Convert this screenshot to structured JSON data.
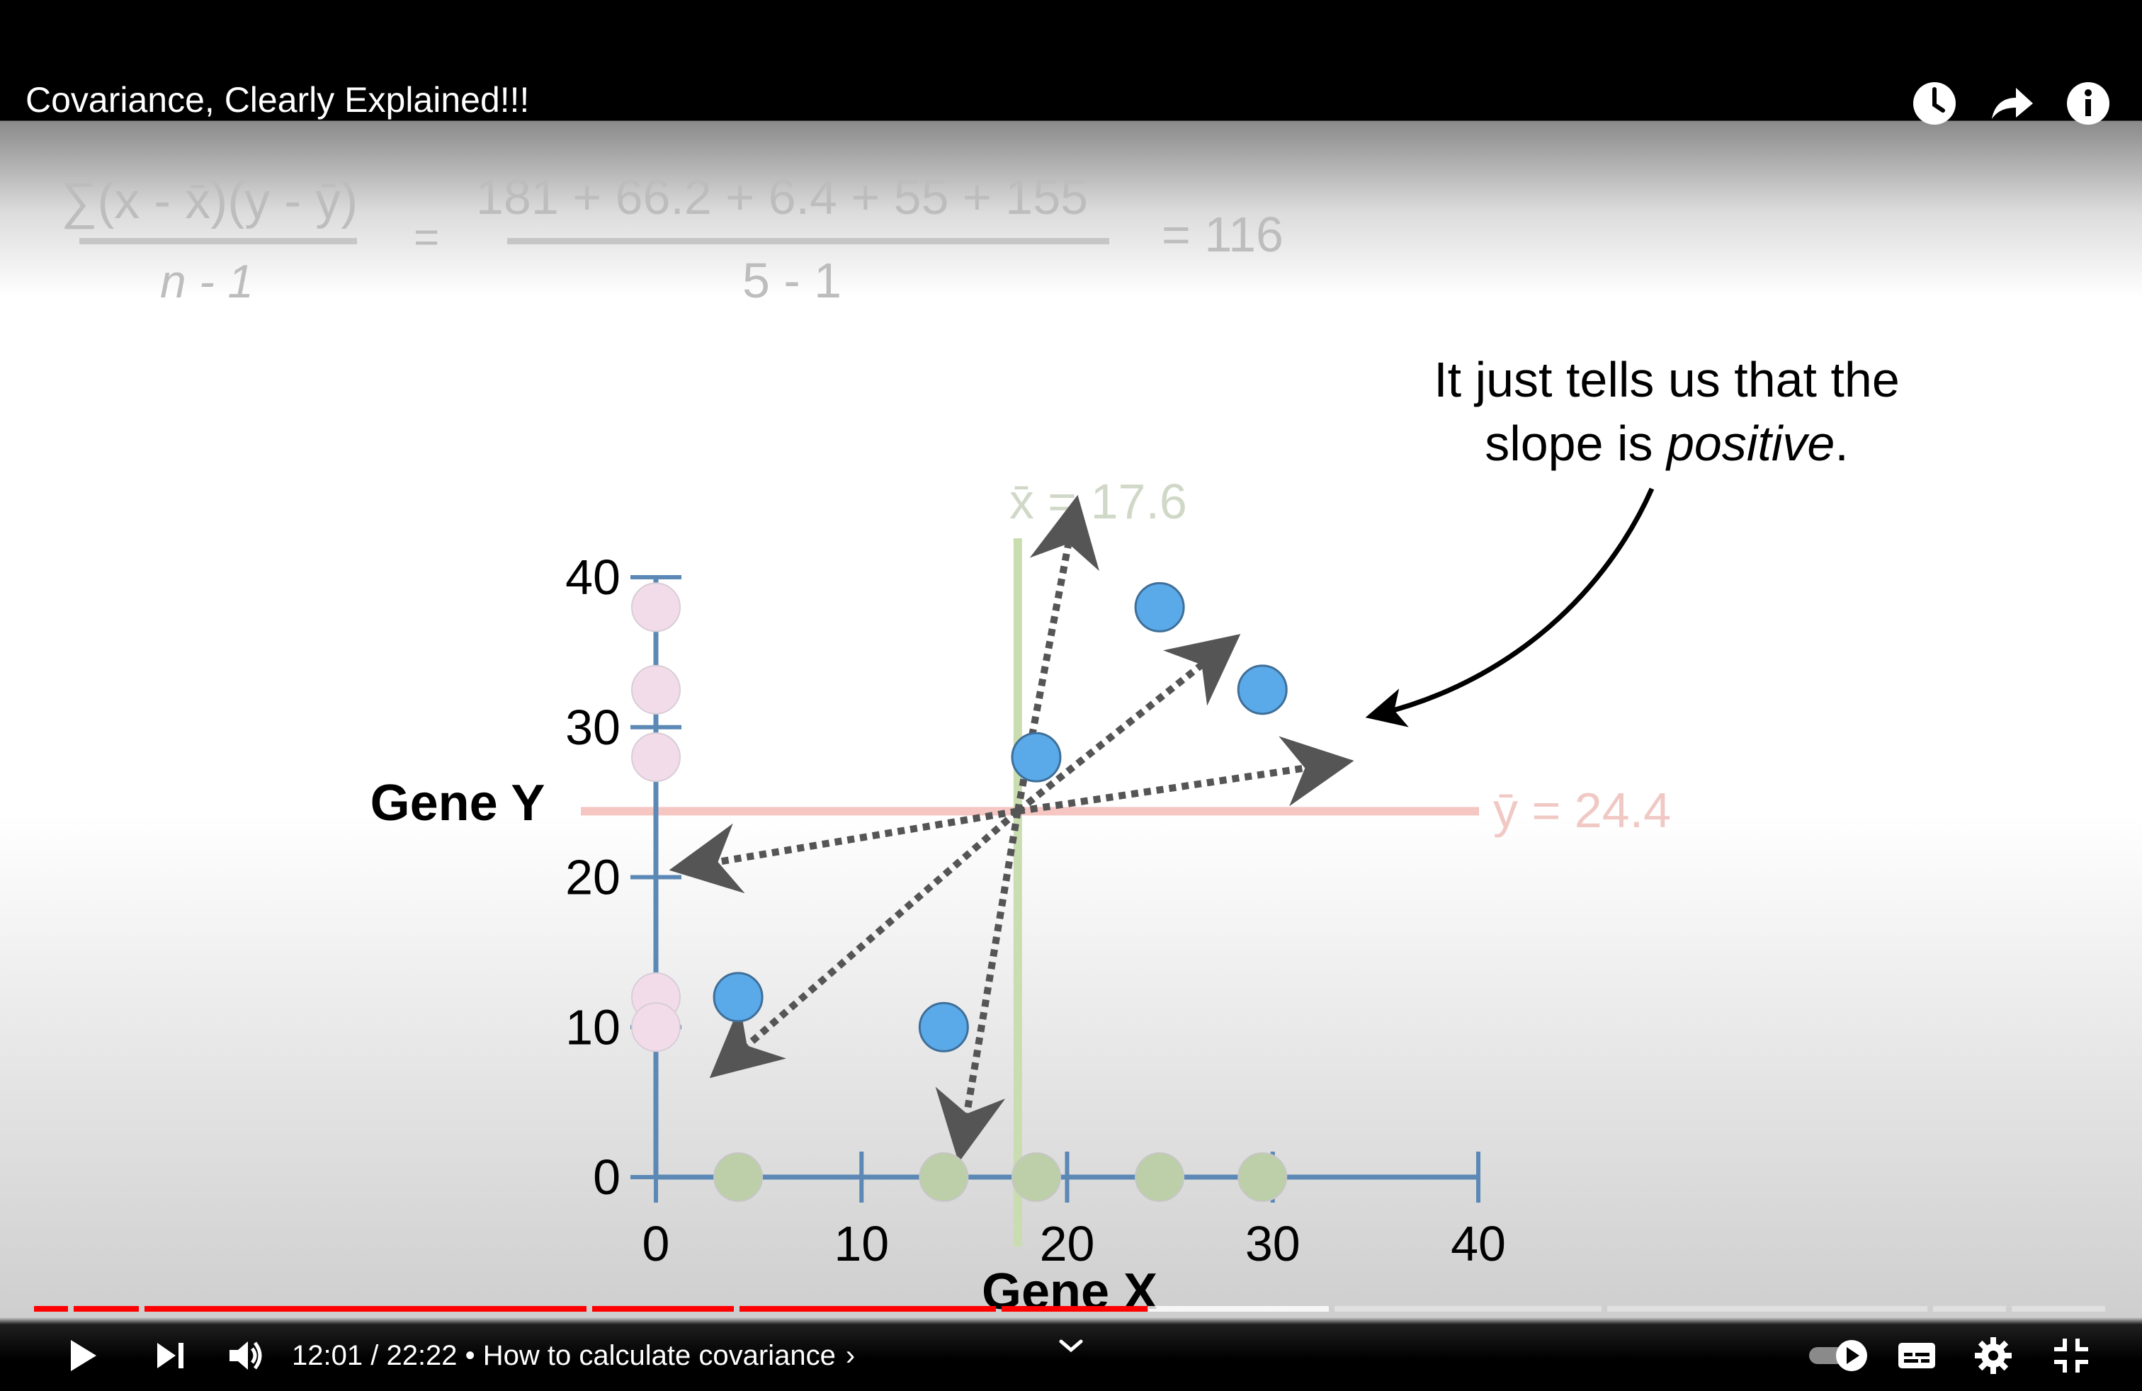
{
  "video": {
    "title": "Covariance, Clearly Explained!!!"
  },
  "top_icons": [
    "watch-later-icon",
    "share-icon",
    "info-icon"
  ],
  "slide": {
    "formula_left_numerator": "∑(x - x̄)(y - ȳ)",
    "formula_left_denominator": "n - 1",
    "formula_equals": "=",
    "formula_middle_numerator": "181 + 66.2 + 6.4 + 55 + 155",
    "formula_middle_denominator": "5 - 1",
    "formula_result": "= 116",
    "callout_line1": "It just tells us that the",
    "callout_line2_prefix": "slope is ",
    "callout_line2_italic": "positive",
    "callout_line2_suffix": ".",
    "x_mean_label": "x̄ = 17.6",
    "y_mean_label": "ȳ = 24.4"
  },
  "chart_data": {
    "type": "scatter",
    "xlabel": "Gene X",
    "ylabel": "Gene Y",
    "xlim": [
      0,
      40
    ],
    "ylim": [
      0,
      40
    ],
    "xticks": [
      0,
      10,
      20,
      30,
      40
    ],
    "yticks": [
      0,
      10,
      20,
      30,
      40
    ],
    "x_mean": 17.6,
    "y_mean": 24.4,
    "points": [
      {
        "x": 4,
        "y": 12
      },
      {
        "x": 14,
        "y": 10
      },
      {
        "x": 18.5,
        "y": 28
      },
      {
        "x": 24.5,
        "y": 38
      },
      {
        "x": 29.5,
        "y": 32.5
      }
    ],
    "colors": {
      "axis": "#5b88b5",
      "point": "#5aaaea",
      "projection_x": "#bccfa8",
      "projection_y": "#f2dcea",
      "x_mean_line": "#c9ddb0",
      "y_mean_line": "#f5c6c2",
      "arrow": "#555555"
    }
  },
  "controls": {
    "time_current": "12:01",
    "time_separator": " / ",
    "time_total": "22:22",
    "chapter_separator": " • ",
    "chapter": "How to calculate covariance",
    "chapter_chevron": "›",
    "progress_fraction": 0.537,
    "buffer_fraction": 0.627,
    "progress_color": "#ff0000",
    "icons": [
      "play-icon",
      "next-icon",
      "volume-icon",
      "chevron-down-icon",
      "autoplay-toggle-icon",
      "subtitles-icon",
      "settings-icon",
      "exit-fullscreen-icon"
    ]
  }
}
